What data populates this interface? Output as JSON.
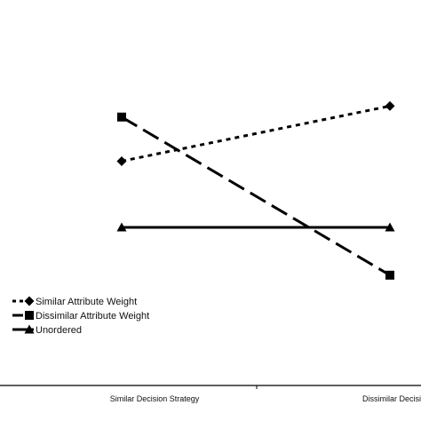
{
  "chart_data": {
    "type": "line",
    "title": "",
    "xlabel": "",
    "ylabel": "",
    "categories": [
      "Similar Decision Strategy",
      "Dissimilar Decision Strategy"
    ],
    "ylim": [
      0,
      10
    ],
    "grid": false,
    "legend_position": "bottom-left",
    "series": [
      {
        "name": "Similar Attribute Weight",
        "values": [
          6.1,
          7.6
        ],
        "marker": "diamond",
        "dash": "dotted",
        "color": "#000000"
      },
      {
        "name": "Dissimilar Attribute Weight",
        "values": [
          7.3,
          3.0
        ],
        "marker": "square",
        "dash": "dashed",
        "color": "#000000"
      },
      {
        "name": "Unordered",
        "values": [
          4.3,
          4.3
        ],
        "marker": "triangle",
        "dash": "solid",
        "color": "#000000"
      }
    ]
  }
}
